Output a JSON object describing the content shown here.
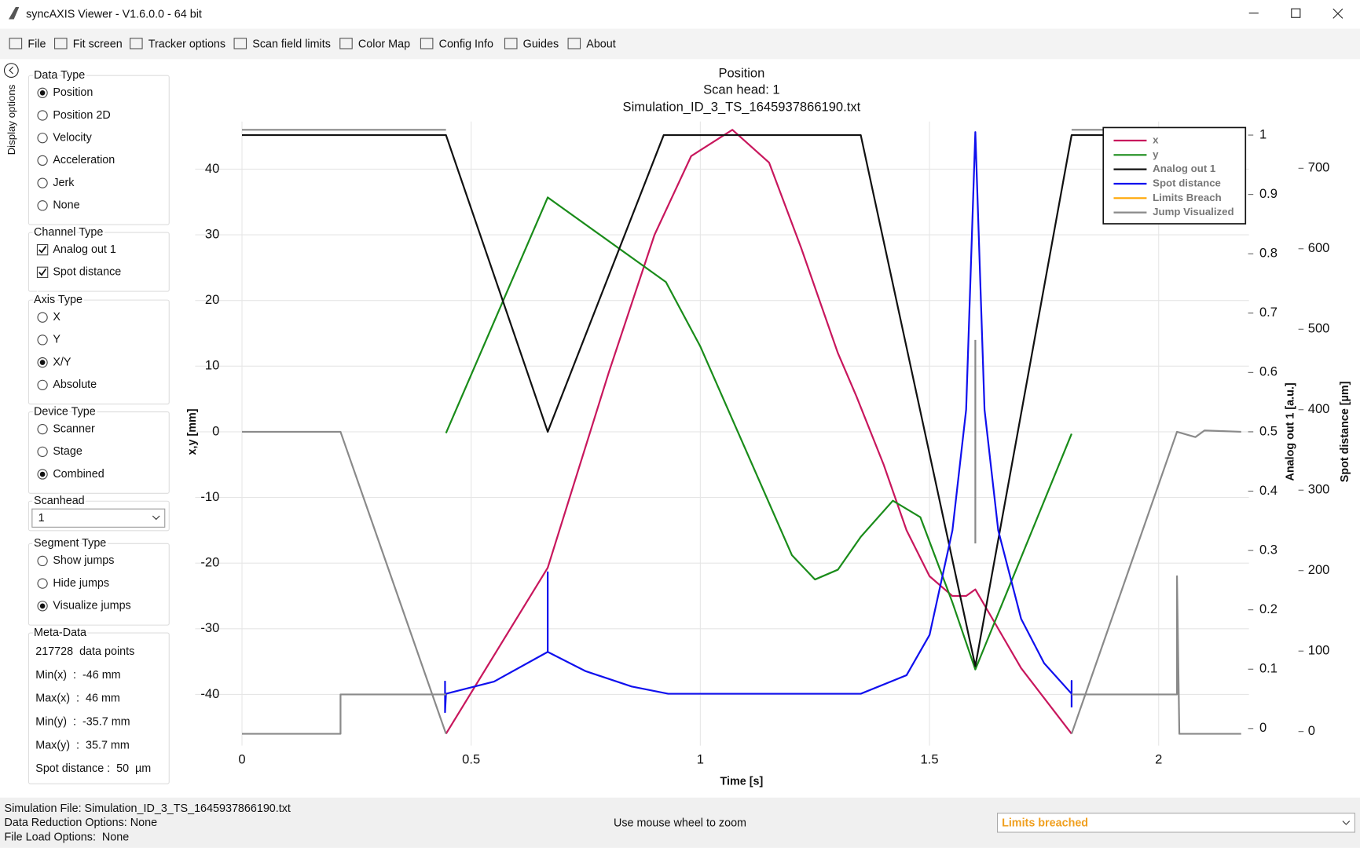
{
  "window": {
    "title": "syncAXIS Viewer - V1.6.0.0 - 64 bit"
  },
  "toolbar": [
    "File",
    "Fit screen",
    "Tracker options",
    "Scan field limits",
    "Color Map",
    "Config Info",
    "Guides",
    "About"
  ],
  "sidebar": {
    "tab": "Display options",
    "groups": [
      {
        "title": "Data Type",
        "kind": "radio",
        "options": [
          {
            "label": "Position",
            "checked": true
          },
          {
            "label": "Position 2D",
            "checked": false
          },
          {
            "label": "Velocity",
            "checked": false
          },
          {
            "label": "Acceleration",
            "checked": false
          },
          {
            "label": "Jerk",
            "checked": false
          },
          {
            "label": "None",
            "checked": false
          }
        ]
      },
      {
        "title": "Channel Type",
        "kind": "checkbox",
        "options": [
          {
            "label": "Analog out 1",
            "checked": true
          },
          {
            "label": "Spot distance",
            "checked": true
          }
        ]
      },
      {
        "title": "Axis Type",
        "kind": "radio",
        "options": [
          {
            "label": "X",
            "checked": false
          },
          {
            "label": "Y",
            "checked": false
          },
          {
            "label": "X/Y",
            "checked": true
          },
          {
            "label": "Absolute",
            "checked": false
          }
        ]
      },
      {
        "title": "Device Type",
        "kind": "radio",
        "options": [
          {
            "label": "Scanner",
            "checked": false
          },
          {
            "label": "Stage",
            "checked": false
          },
          {
            "label": "Combined",
            "checked": true
          }
        ]
      },
      {
        "title": "Scanhead",
        "kind": "dropdown",
        "value": "1"
      },
      {
        "title": "Segment Type",
        "kind": "radio",
        "options": [
          {
            "label": "Show jumps",
            "checked": false
          },
          {
            "label": "Hide jumps",
            "checked": false
          },
          {
            "label": "Visualize jumps",
            "checked": true
          }
        ]
      },
      {
        "title": "Meta-Data",
        "kind": "text",
        "lines": [
          "217728  data points",
          "Min(x)  :  -46 mm",
          "Max(x)  :  46 mm",
          "Min(y)  :  -35.7 mm",
          "Max(y)  :  35.7 mm",
          "Spot distance :  50  µm"
        ]
      }
    ]
  },
  "chart_data": {
    "type": "line",
    "title": "Position",
    "subtitle": "Scan head: 1",
    "caption": "Simulation_ID_3_TS_1645937866190.txt",
    "x_label": "Time [s]",
    "y_label": "x,y [mm]",
    "y2_label": "Analog out 1 [a.u.]",
    "y3_label": "Spot distance [µm]",
    "xlim": [
      0,
      2.18
    ],
    "xticks": [
      0,
      0.5,
      1,
      1.5,
      2
    ],
    "ylim": [
      -47,
      47
    ],
    "yticks": [
      -40,
      -30,
      -20,
      -10,
      0,
      10,
      20,
      30,
      40
    ],
    "y2lim": [
      -0.02,
      1.02
    ],
    "y2ticks": [
      0,
      0.1,
      0.2,
      0.3,
      0.4,
      0.5,
      0.6,
      0.7,
      0.8,
      0.9,
      1
    ],
    "y3lim": [
      -11,
      756
    ],
    "y3ticks": [
      0,
      100,
      200,
      300,
      400,
      500,
      600,
      700
    ],
    "grid": true,
    "legend": "top-right",
    "series": [
      {
        "name": "x",
        "color": "#c8175d",
        "x": [
          0.445,
          0.667,
          0.8,
          0.9,
          0.98,
          1.07,
          1.15,
          1.22,
          1.3,
          1.34,
          1.4,
          1.45,
          1.5,
          1.55,
          1.58,
          1.6,
          1.65,
          1.7,
          1.81
        ],
        "values": [
          -46,
          -20.7,
          9,
          30,
          42,
          46,
          41,
          28,
          12,
          5.5,
          -5,
          -15,
          -22,
          -25,
          -25,
          -24,
          -30,
          -36,
          -46
        ]
      },
      {
        "name": "y",
        "color": "#1a8c1a",
        "x": [
          0.445,
          0.667,
          0.925,
          1.0,
          1.1,
          1.2,
          1.25,
          1.3,
          1.35,
          1.42,
          1.48,
          1.55,
          1.6,
          1.81
        ],
        "values": [
          -0.2,
          35.7,
          22.8,
          13,
          -2.9,
          -18.8,
          -22.5,
          -21,
          -16,
          -10.5,
          -13,
          -26,
          -36.2,
          -0.3
        ]
      },
      {
        "name": "Analog out 1",
        "color": "#111111",
        "x": [
          0,
          0.445,
          0.667,
          0.92,
          1.35,
          1.6,
          1.81,
          2.18
        ],
        "values": [
          1,
          1,
          0.5,
          1,
          1,
          0.105,
          1,
          1
        ],
        "axis": "y2"
      },
      {
        "name": "Spot distance",
        "color": "#1010ee",
        "x": [
          0.443,
          0.443,
          0.445,
          0.55,
          0.667,
          0.667,
          0.667,
          0.75,
          0.85,
          0.93,
          1.35,
          1.45,
          1.5,
          1.55,
          1.58,
          1.6,
          1.62,
          1.65,
          1.7,
          1.75,
          1.81,
          1.81,
          1.81
        ],
        "values": [
          63,
          24,
          47,
          62,
          99,
          198,
          99,
          75,
          56,
          47,
          47,
          70,
          120,
          250,
          400,
          745,
          400,
          250,
          140,
          85,
          47,
          63,
          30
        ],
        "axis": "y3"
      },
      {
        "name": "Limits Breach",
        "color": "#ffa500",
        "x": [],
        "values": []
      },
      {
        "name": "Jump Visualized",
        "color": "#8a8a8a",
        "x": [
          0,
          0.445,
          null,
          0,
          0.215,
          0.445,
          null,
          0,
          0.215,
          0.215,
          0.445,
          null,
          1.6,
          1.6,
          null,
          1.81,
          2.04,
          2.08,
          2.1,
          2.18,
          null,
          1.81,
          2.18,
          null,
          1.81,
          2.04,
          2.04,
          2.045,
          2.18
        ],
        "values": [
          46,
          46,
          null,
          0,
          0,
          -46,
          null,
          -46,
          -46,
          -40,
          -40,
          null,
          -17,
          14,
          null,
          -46,
          0,
          -0.8,
          0.2,
          0,
          null,
          46,
          46,
          null,
          -40,
          -40,
          -22,
          -46,
          -46
        ]
      }
    ]
  },
  "status": {
    "lines": [
      "Simulation File: Simulation_ID_3_TS_1645937866190.txt",
      "Data Reduction Options: None",
      "File Load Options:  None"
    ],
    "hint": "Use mouse wheel to zoom",
    "dropdown": "Limits breached"
  }
}
